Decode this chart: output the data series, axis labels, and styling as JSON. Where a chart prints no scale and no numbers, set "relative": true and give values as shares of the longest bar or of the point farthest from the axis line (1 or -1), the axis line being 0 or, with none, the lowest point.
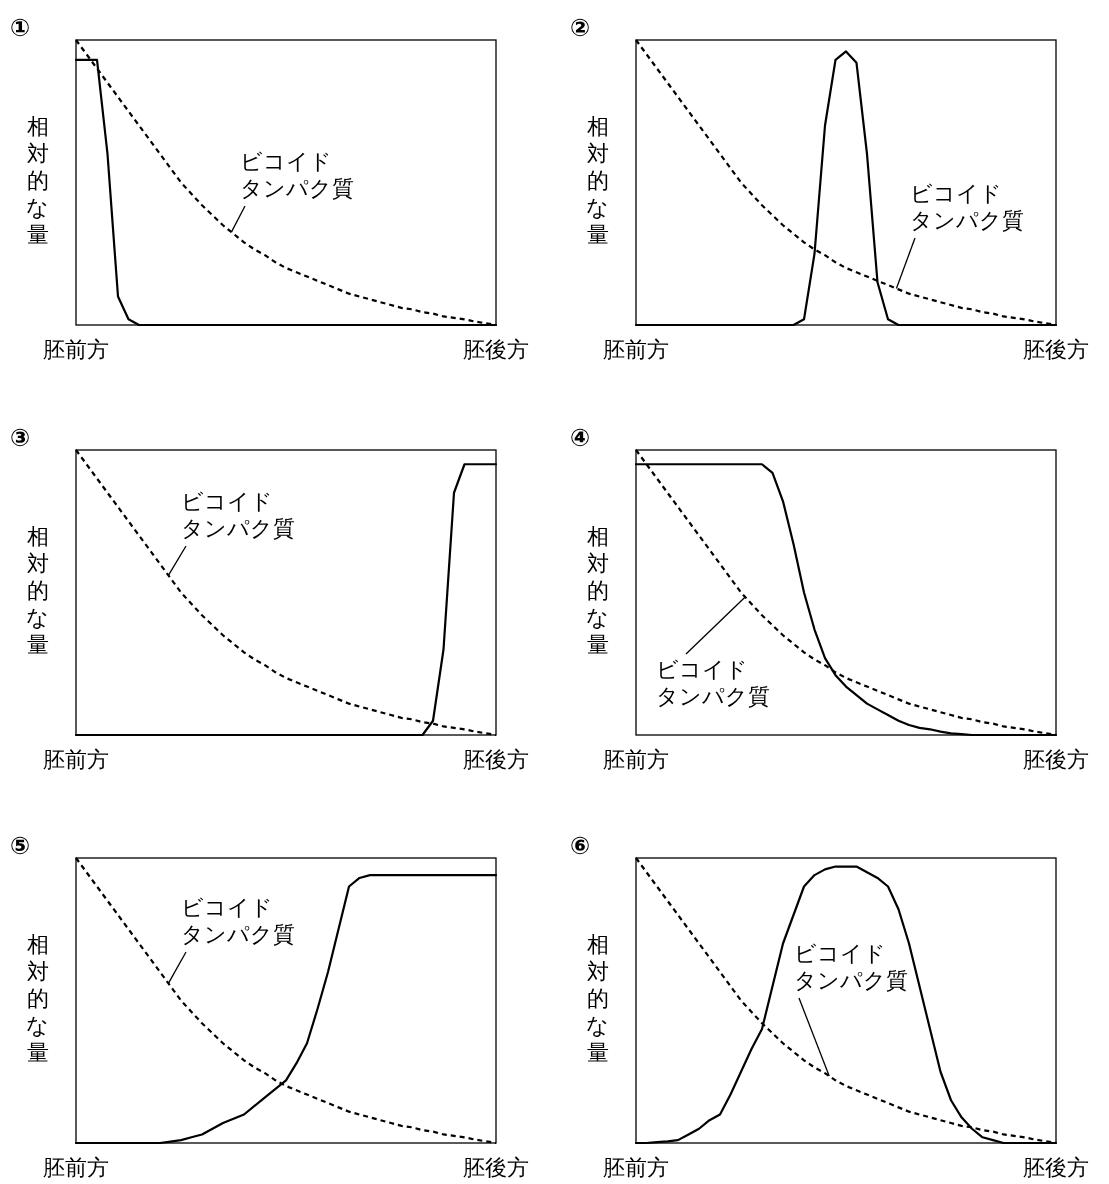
{
  "chart_data": [
    {
      "type": "line",
      "title": "①",
      "ylabel": "相対的な量",
      "relative": true,
      "grid": false,
      "categories": [
        "胚前方",
        null,
        null,
        null,
        null,
        null,
        null,
        null,
        null,
        null,
        null,
        null,
        null,
        null,
        null,
        null,
        null,
        null,
        null,
        null,
        null,
        null,
        null,
        null,
        null,
        null,
        null,
        null,
        null,
        null,
        null,
        null,
        null,
        null,
        null,
        null,
        null,
        null,
        null,
        null,
        "胚後方"
      ],
      "series": [
        {
          "color": "#000000",
          "line_style": "dashed",
          "values": [
            1,
            0.95,
            0.9,
            0.85,
            0.8,
            0.75,
            0.7,
            0.65,
            0.6,
            0.55,
            0.5,
            0.46,
            0.42,
            0.385,
            0.35,
            0.32,
            0.29,
            0.265,
            0.245,
            0.22,
            0.2,
            0.185,
            0.17,
            0.155,
            0.14,
            0.125,
            0.11,
            0.1,
            0.09,
            0.08,
            0.07,
            0.06,
            0.055,
            0.045,
            0.04,
            0.03,
            0.025,
            0.02,
            0.012,
            0.006,
            0
          ]
        },
        {
          "color": "#000000",
          "line_style": "solid",
          "values": [
            0.93,
            0.93,
            0.93,
            0.6,
            0.1,
            0.02,
            0,
            0,
            0,
            0,
            0,
            0,
            0,
            0,
            0,
            0,
            0,
            0,
            0,
            0,
            0,
            0,
            0,
            0,
            0,
            0,
            0,
            0,
            0,
            0,
            0,
            0,
            0,
            0,
            0,
            0,
            0,
            0,
            0,
            0,
            0
          ]
        }
      ],
      "annotations": [
        "ビコイド",
        "タンパク質"
      ]
    },
    {
      "type": "line",
      "title": "②",
      "ylabel": "相対的な量",
      "relative": true,
      "grid": false,
      "categories": [
        "胚前方",
        null,
        null,
        null,
        null,
        null,
        null,
        null,
        null,
        null,
        null,
        null,
        null,
        null,
        null,
        null,
        null,
        null,
        null,
        null,
        null,
        null,
        null,
        null,
        null,
        null,
        null,
        null,
        null,
        null,
        null,
        null,
        null,
        null,
        null,
        null,
        null,
        null,
        null,
        null,
        "胚後方"
      ],
      "series": [
        {
          "color": "#000000",
          "line_style": "dashed",
          "values": [
            1,
            0.95,
            0.9,
            0.85,
            0.8,
            0.75,
            0.7,
            0.65,
            0.6,
            0.55,
            0.5,
            0.46,
            0.42,
            0.385,
            0.35,
            0.32,
            0.29,
            0.265,
            0.245,
            0.22,
            0.2,
            0.185,
            0.17,
            0.155,
            0.14,
            0.125,
            0.11,
            0.1,
            0.09,
            0.08,
            0.07,
            0.06,
            0.055,
            0.045,
            0.04,
            0.03,
            0.025,
            0.02,
            0.012,
            0.006,
            0
          ]
        },
        {
          "color": "#000000",
          "line_style": "solid",
          "values": [
            0,
            0,
            0,
            0,
            0,
            0,
            0,
            0,
            0,
            0,
            0,
            0,
            0,
            0,
            0,
            0,
            0.02,
            0.25,
            0.7,
            0.93,
            0.96,
            0.92,
            0.6,
            0.15,
            0.02,
            0,
            0,
            0,
            0,
            0,
            0,
            0,
            0,
            0,
            0,
            0,
            0,
            0,
            0,
            0,
            0
          ]
        }
      ],
      "annotations": [
        "ビコイド",
        "タンパク質"
      ]
    },
    {
      "type": "line",
      "title": "③",
      "ylabel": "相対的な量",
      "relative": true,
      "grid": false,
      "categories": [
        "胚前方",
        null,
        null,
        null,
        null,
        null,
        null,
        null,
        null,
        null,
        null,
        null,
        null,
        null,
        null,
        null,
        null,
        null,
        null,
        null,
        null,
        null,
        null,
        null,
        null,
        null,
        null,
        null,
        null,
        null,
        null,
        null,
        null,
        null,
        null,
        null,
        null,
        null,
        null,
        null,
        "胚後方"
      ],
      "series": [
        {
          "color": "#000000",
          "line_style": "dashed",
          "values": [
            1,
            0.95,
            0.9,
            0.85,
            0.8,
            0.75,
            0.7,
            0.65,
            0.6,
            0.55,
            0.5,
            0.46,
            0.42,
            0.385,
            0.35,
            0.32,
            0.29,
            0.265,
            0.245,
            0.22,
            0.2,
            0.185,
            0.17,
            0.155,
            0.14,
            0.125,
            0.11,
            0.1,
            0.09,
            0.08,
            0.07,
            0.06,
            0.055,
            0.045,
            0.04,
            0.03,
            0.025,
            0.02,
            0.012,
            0.006,
            0
          ]
        },
        {
          "color": "#000000",
          "line_style": "solid",
          "values": [
            0,
            0,
            0,
            0,
            0,
            0,
            0,
            0,
            0,
            0,
            0,
            0,
            0,
            0,
            0,
            0,
            0,
            0,
            0,
            0,
            0,
            0,
            0,
            0,
            0,
            0,
            0,
            0,
            0,
            0,
            0,
            0,
            0,
            0,
            0.05,
            0.3,
            0.85,
            0.95,
            0.95,
            0.95,
            0.95
          ]
        }
      ],
      "annotations": [
        "ビコイド",
        "タンパク質"
      ]
    },
    {
      "type": "line",
      "title": "④",
      "ylabel": "相対的な量",
      "relative": true,
      "grid": false,
      "categories": [
        "胚前方",
        null,
        null,
        null,
        null,
        null,
        null,
        null,
        null,
        null,
        null,
        null,
        null,
        null,
        null,
        null,
        null,
        null,
        null,
        null,
        null,
        null,
        null,
        null,
        null,
        null,
        null,
        null,
        null,
        null,
        null,
        null,
        null,
        null,
        null,
        null,
        null,
        null,
        null,
        null,
        "胚後方"
      ],
      "series": [
        {
          "color": "#000000",
          "line_style": "dashed",
          "values": [
            1,
            0.95,
            0.9,
            0.85,
            0.8,
            0.75,
            0.7,
            0.65,
            0.6,
            0.55,
            0.5,
            0.46,
            0.42,
            0.385,
            0.35,
            0.32,
            0.29,
            0.265,
            0.245,
            0.22,
            0.2,
            0.185,
            0.17,
            0.155,
            0.14,
            0.125,
            0.11,
            0.1,
            0.09,
            0.08,
            0.07,
            0.06,
            0.055,
            0.045,
            0.04,
            0.03,
            0.025,
            0.02,
            0.012,
            0.006,
            0
          ]
        },
        {
          "color": "#000000",
          "line_style": "solid",
          "values": [
            0.95,
            0.95,
            0.95,
            0.95,
            0.95,
            0.95,
            0.95,
            0.95,
            0.95,
            0.95,
            0.95,
            0.95,
            0.95,
            0.92,
            0.82,
            0.67,
            0.5,
            0.37,
            0.27,
            0.21,
            0.17,
            0.14,
            0.11,
            0.09,
            0.07,
            0.05,
            0.035,
            0.025,
            0.02,
            0.012,
            0.006,
            0.003,
            0,
            0,
            0,
            0,
            0,
            0,
            0,
            0,
            0
          ]
        }
      ],
      "annotations": [
        "ビコイド",
        "タンパク質"
      ]
    },
    {
      "type": "line",
      "title": "⑤",
      "ylabel": "相対的な量",
      "relative": true,
      "grid": false,
      "categories": [
        "胚前方",
        null,
        null,
        null,
        null,
        null,
        null,
        null,
        null,
        null,
        null,
        null,
        null,
        null,
        null,
        null,
        null,
        null,
        null,
        null,
        null,
        null,
        null,
        null,
        null,
        null,
        null,
        null,
        null,
        null,
        null,
        null,
        null,
        null,
        null,
        null,
        null,
        null,
        null,
        null,
        "胚後方"
      ],
      "series": [
        {
          "color": "#000000",
          "line_style": "dashed",
          "values": [
            1,
            0.95,
            0.9,
            0.85,
            0.8,
            0.75,
            0.7,
            0.65,
            0.6,
            0.55,
            0.5,
            0.46,
            0.42,
            0.385,
            0.35,
            0.32,
            0.29,
            0.265,
            0.245,
            0.22,
            0.2,
            0.185,
            0.17,
            0.155,
            0.14,
            0.125,
            0.11,
            0.1,
            0.09,
            0.08,
            0.07,
            0.06,
            0.055,
            0.045,
            0.04,
            0.03,
            0.025,
            0.02,
            0.012,
            0.006,
            0
          ]
        },
        {
          "color": "#000000",
          "line_style": "solid",
          "values": [
            0,
            0,
            0,
            0,
            0,
            0,
            0,
            0,
            0,
            0.005,
            0.01,
            0.02,
            0.03,
            0.05,
            0.07,
            0.085,
            0.1,
            0.13,
            0.16,
            0.19,
            0.22,
            0.28,
            0.35,
            0.47,
            0.6,
            0.75,
            0.9,
            0.93,
            0.94,
            0.94,
            0.94,
            0.94,
            0.94,
            0.94,
            0.94,
            0.94,
            0.94,
            0.94,
            0.94,
            0.94,
            0.94
          ]
        }
      ],
      "annotations": [
        "ビコイド",
        "タンパク質"
      ]
    },
    {
      "type": "line",
      "title": "⑥",
      "ylabel": "相対的な量",
      "relative": true,
      "grid": false,
      "categories": [
        "胚前方",
        null,
        null,
        null,
        null,
        null,
        null,
        null,
        null,
        null,
        null,
        null,
        null,
        null,
        null,
        null,
        null,
        null,
        null,
        null,
        null,
        null,
        null,
        null,
        null,
        null,
        null,
        null,
        null,
        null,
        null,
        null,
        null,
        null,
        null,
        null,
        null,
        null,
        null,
        null,
        "胚後方"
      ],
      "series": [
        {
          "color": "#000000",
          "line_style": "dashed",
          "values": [
            1,
            0.95,
            0.9,
            0.85,
            0.8,
            0.75,
            0.7,
            0.65,
            0.6,
            0.55,
            0.5,
            0.46,
            0.42,
            0.385,
            0.35,
            0.32,
            0.29,
            0.265,
            0.245,
            0.22,
            0.2,
            0.185,
            0.17,
            0.155,
            0.14,
            0.125,
            0.11,
            0.1,
            0.09,
            0.08,
            0.07,
            0.06,
            0.055,
            0.045,
            0.04,
            0.03,
            0.025,
            0.02,
            0.012,
            0.006,
            0
          ]
        },
        {
          "color": "#000000",
          "line_style": "solid",
          "values": [
            0,
            0,
            0.003,
            0.006,
            0.01,
            0.03,
            0.05,
            0.08,
            0.1,
            0.17,
            0.25,
            0.33,
            0.4,
            0.55,
            0.7,
            0.8,
            0.9,
            0.94,
            0.96,
            0.97,
            0.97,
            0.97,
            0.95,
            0.93,
            0.9,
            0.82,
            0.7,
            0.55,
            0.4,
            0.25,
            0.15,
            0.09,
            0.05,
            0.02,
            0.01,
            0,
            0,
            0,
            0,
            0,
            0
          ]
        }
      ],
      "annotations": [
        "ビコイド",
        "タンパク質"
      ]
    }
  ]
}
